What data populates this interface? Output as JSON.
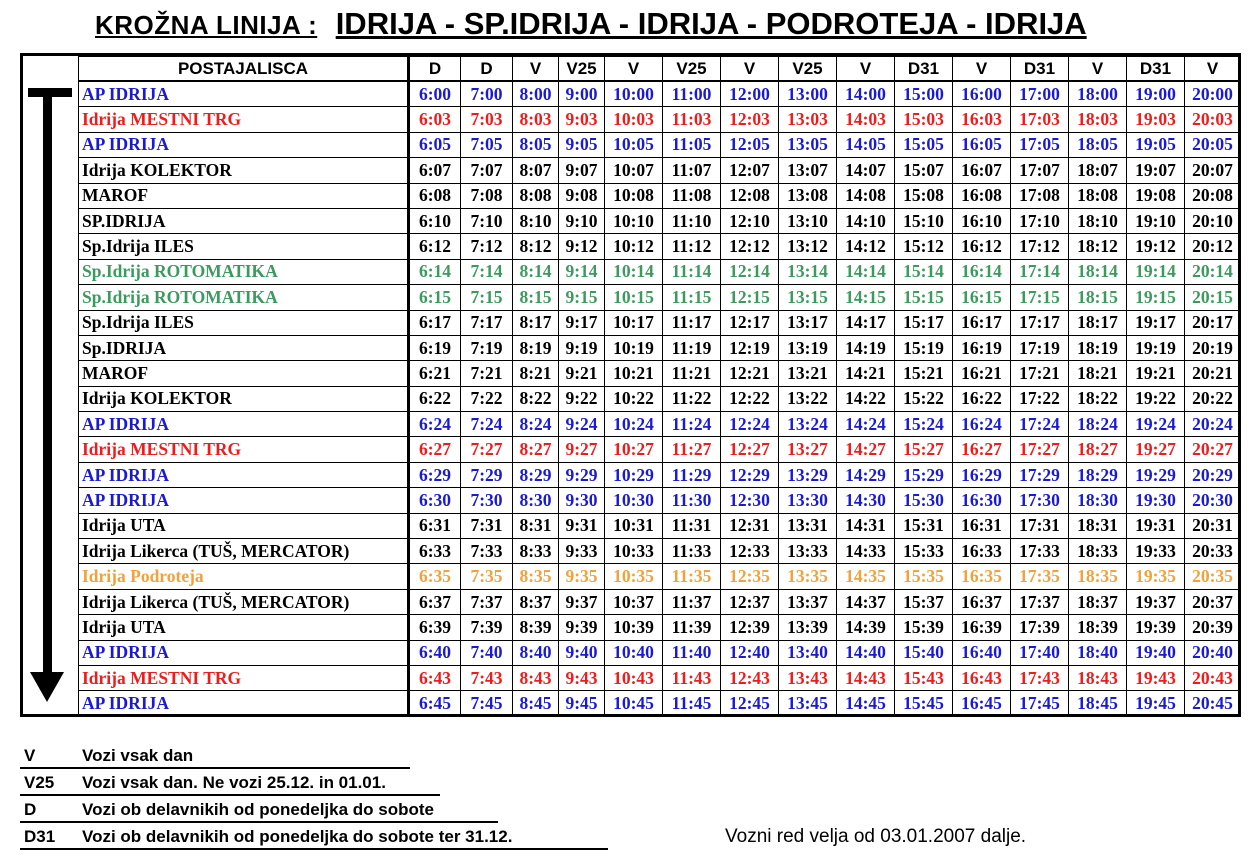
{
  "title": {
    "prefix": "KROŽNA  LINIJA :",
    "route": "IDRIJA - SP.IDRIJA - IDRIJA - PODROTEJA - IDRIJA"
  },
  "timetable": {
    "station_header": "POSTAJALISCA",
    "columns": [
      "D",
      "D",
      "V",
      "V25",
      "V",
      "V25",
      "V",
      "V25",
      "V",
      "D31",
      "V",
      "D31",
      "V",
      "D31",
      "V"
    ],
    "colors": {
      "blue": "#1a1ad0",
      "red": "#ee1c1c",
      "black": "#000000",
      "green": "#3c9a5e",
      "orange": "#f2a23a"
    },
    "rows": [
      {
        "station": "AP IDRIJA",
        "color": "blue",
        "times": [
          "6:00",
          "7:00",
          "8:00",
          "9:00",
          "10:00",
          "11:00",
          "12:00",
          "13:00",
          "14:00",
          "15:00",
          "16:00",
          "17:00",
          "18:00",
          "19:00",
          "20:00"
        ]
      },
      {
        "station": "Idrija MESTNI  TRG",
        "color": "red",
        "times": [
          "6:03",
          "7:03",
          "8:03",
          "9:03",
          "10:03",
          "11:03",
          "12:03",
          "13:03",
          "14:03",
          "15:03",
          "16:03",
          "17:03",
          "18:03",
          "19:03",
          "20:03"
        ]
      },
      {
        "station": "AP IDRIJA",
        "color": "blue",
        "times": [
          "6:05",
          "7:05",
          "8:05",
          "9:05",
          "10:05",
          "11:05",
          "12:05",
          "13:05",
          "14:05",
          "15:05",
          "16:05",
          "17:05",
          "18:05",
          "19:05",
          "20:05"
        ]
      },
      {
        "station": "Idrija KOLEKTOR",
        "color": "black",
        "times": [
          "6:07",
          "7:07",
          "8:07",
          "9:07",
          "10:07",
          "11:07",
          "12:07",
          "13:07",
          "14:07",
          "15:07",
          "16:07",
          "17:07",
          "18:07",
          "19:07",
          "20:07"
        ]
      },
      {
        "station": "MAROF",
        "color": "black",
        "times": [
          "6:08",
          "7:08",
          "8:08",
          "9:08",
          "10:08",
          "11:08",
          "12:08",
          "13:08",
          "14:08",
          "15:08",
          "16:08",
          "17:08",
          "18:08",
          "19:08",
          "20:08"
        ]
      },
      {
        "station": "SP.IDRIJA",
        "color": "black",
        "times": [
          "6:10",
          "7:10",
          "8:10",
          "9:10",
          "10:10",
          "11:10",
          "12:10",
          "13:10",
          "14:10",
          "15:10",
          "16:10",
          "17:10",
          "18:10",
          "19:10",
          "20:10"
        ]
      },
      {
        "station": "Sp.Idrija ILES",
        "color": "black",
        "times": [
          "6:12",
          "7:12",
          "8:12",
          "9:12",
          "10:12",
          "11:12",
          "12:12",
          "13:12",
          "14:12",
          "15:12",
          "16:12",
          "17:12",
          "18:12",
          "19:12",
          "20:12"
        ]
      },
      {
        "station": "Sp.Idrija ROTOMATIKA",
        "color": "green",
        "times": [
          "6:14",
          "7:14",
          "8:14",
          "9:14",
          "10:14",
          "11:14",
          "12:14",
          "13:14",
          "14:14",
          "15:14",
          "16:14",
          "17:14",
          "18:14",
          "19:14",
          "20:14"
        ]
      },
      {
        "station": "Sp.Idrija ROTOMATIKA",
        "color": "green",
        "times": [
          "6:15",
          "7:15",
          "8:15",
          "9:15",
          "10:15",
          "11:15",
          "12:15",
          "13:15",
          "14:15",
          "15:15",
          "16:15",
          "17:15",
          "18:15",
          "19:15",
          "20:15"
        ]
      },
      {
        "station": "Sp.Idrija ILES",
        "color": "black",
        "times": [
          "6:17",
          "7:17",
          "8:17",
          "9:17",
          "10:17",
          "11:17",
          "12:17",
          "13:17",
          "14:17",
          "15:17",
          "16:17",
          "17:17",
          "18:17",
          "19:17",
          "20:17"
        ]
      },
      {
        "station": "Sp.IDRIJA",
        "color": "black",
        "times": [
          "6:19",
          "7:19",
          "8:19",
          "9:19",
          "10:19",
          "11:19",
          "12:19",
          "13:19",
          "14:19",
          "15:19",
          "16:19",
          "17:19",
          "18:19",
          "19:19",
          "20:19"
        ]
      },
      {
        "station": "MAROF",
        "color": "black",
        "times": [
          "6:21",
          "7:21",
          "8:21",
          "9:21",
          "10:21",
          "11:21",
          "12:21",
          "13:21",
          "14:21",
          "15:21",
          "16:21",
          "17:21",
          "18:21",
          "19:21",
          "20:21"
        ]
      },
      {
        "station": "Idrija KOLEKTOR",
        "color": "black",
        "times": [
          "6:22",
          "7:22",
          "8:22",
          "9:22",
          "10:22",
          "11:22",
          "12:22",
          "13:22",
          "14:22",
          "15:22",
          "16:22",
          "17:22",
          "18:22",
          "19:22",
          "20:22"
        ]
      },
      {
        "station": "AP IDRIJA",
        "color": "blue",
        "times": [
          "6:24",
          "7:24",
          "8:24",
          "9:24",
          "10:24",
          "11:24",
          "12:24",
          "13:24",
          "14:24",
          "15:24",
          "16:24",
          "17:24",
          "18:24",
          "19:24",
          "20:24"
        ]
      },
      {
        "station": "Idrija MESTNI  TRG",
        "color": "red",
        "times": [
          "6:27",
          "7:27",
          "8:27",
          "9:27",
          "10:27",
          "11:27",
          "12:27",
          "13:27",
          "14:27",
          "15:27",
          "16:27",
          "17:27",
          "18:27",
          "19:27",
          "20:27"
        ]
      },
      {
        "station": "AP IDRIJA",
        "color": "blue",
        "times": [
          "6:29",
          "7:29",
          "8:29",
          "9:29",
          "10:29",
          "11:29",
          "12:29",
          "13:29",
          "14:29",
          "15:29",
          "16:29",
          "17:29",
          "18:29",
          "19:29",
          "20:29"
        ]
      },
      {
        "station": "AP IDRIJA",
        "color": "blue",
        "times": [
          "6:30",
          "7:30",
          "8:30",
          "9:30",
          "10:30",
          "11:30",
          "12:30",
          "13:30",
          "14:30",
          "15:30",
          "16:30",
          "17:30",
          "18:30",
          "19:30",
          "20:30"
        ]
      },
      {
        "station": "Idrija UTA",
        "color": "black",
        "times": [
          "6:31",
          "7:31",
          "8:31",
          "9:31",
          "10:31",
          "11:31",
          "12:31",
          "13:31",
          "14:31",
          "15:31",
          "16:31",
          "17:31",
          "18:31",
          "19:31",
          "20:31"
        ]
      },
      {
        "station": "Idrija Likerca (TUŠ, MERCATOR)",
        "color": "black",
        "times": [
          "6:33",
          "7:33",
          "8:33",
          "9:33",
          "10:33",
          "11:33",
          "12:33",
          "13:33",
          "14:33",
          "15:33",
          "16:33",
          "17:33",
          "18:33",
          "19:33",
          "20:33"
        ]
      },
      {
        "station": "Idrija Podroteja",
        "color": "orange",
        "times": [
          "6:35",
          "7:35",
          "8:35",
          "9:35",
          "10:35",
          "11:35",
          "12:35",
          "13:35",
          "14:35",
          "15:35",
          "16:35",
          "17:35",
          "18:35",
          "19:35",
          "20:35"
        ]
      },
      {
        "station": "Idrija Likerca (TUŠ, MERCATOR)",
        "color": "black",
        "times": [
          "6:37",
          "7:37",
          "8:37",
          "9:37",
          "10:37",
          "11:37",
          "12:37",
          "13:37",
          "14:37",
          "15:37",
          "16:37",
          "17:37",
          "18:37",
          "19:37",
          "20:37"
        ]
      },
      {
        "station": "Idrija UTA",
        "color": "black",
        "times": [
          "6:39",
          "7:39",
          "8:39",
          "9:39",
          "10:39",
          "11:39",
          "12:39",
          "13:39",
          "14:39",
          "15:39",
          "16:39",
          "17:39",
          "18:39",
          "19:39",
          "20:39"
        ]
      },
      {
        "station": "AP IDRIJA",
        "color": "blue",
        "times": [
          "6:40",
          "7:40",
          "8:40",
          "9:40",
          "10:40",
          "11:40",
          "12:40",
          "13:40",
          "14:40",
          "15:40",
          "16:40",
          "17:40",
          "18:40",
          "19:40",
          "20:40"
        ]
      },
      {
        "station": "Idrija MESTNI  TRG",
        "color": "red",
        "times": [
          "6:43",
          "7:43",
          "8:43",
          "9:43",
          "10:43",
          "11:43",
          "12:43",
          "13:43",
          "14:43",
          "15:43",
          "16:43",
          "17:43",
          "18:43",
          "19:43",
          "20:43"
        ]
      },
      {
        "station": "AP IDRIJA",
        "color": "blue",
        "times": [
          "6:45",
          "7:45",
          "8:45",
          "9:45",
          "10:45",
          "11:45",
          "12:45",
          "13:45",
          "14:45",
          "15:45",
          "16:45",
          "17:45",
          "18:45",
          "19:45",
          "20:45"
        ]
      }
    ]
  },
  "direction_arrow": "arrow-down-icon",
  "legend": [
    {
      "code": "V",
      "description": "Vozi vsak dan"
    },
    {
      "code": "V25",
      "description": "Vozi vsak dan. Ne vozi 25.12. in 01.01."
    },
    {
      "code": "D",
      "description": "Vozi ob delavnikih od ponedeljka do sobote"
    },
    {
      "code": "D31",
      "description": "Vozi ob delavnikih od ponedeljka do sobote ter 31.12."
    }
  ],
  "validity_note": "Vozni red velja od 03.01.2007 dalje."
}
